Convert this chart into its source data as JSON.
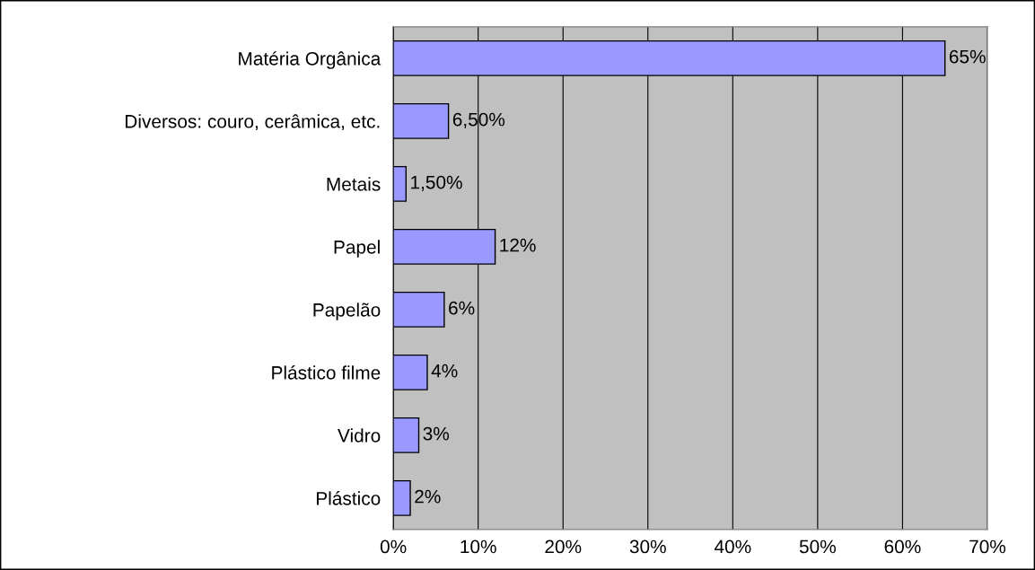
{
  "chart_data": {
    "type": "bar",
    "orientation": "horizontal",
    "categories": [
      "Matéria Orgânica",
      "Diversos: couro, cerâmica, etc.",
      "Metais",
      "Papel",
      "Papelão",
      "Plástico filme",
      "Vidro",
      "Plástico"
    ],
    "values": [
      65,
      6.5,
      1.5,
      12,
      6,
      4,
      3,
      2
    ],
    "value_labels": [
      "65%",
      "6,50%",
      "1,50%",
      "12%",
      "6%",
      "4%",
      "3%",
      "2%"
    ],
    "color": "#9999ff",
    "xlim": [
      0,
      70
    ],
    "xticks": [
      {
        "value": 0,
        "label": "0%"
      },
      {
        "value": 10,
        "label": "10%"
      },
      {
        "value": 20,
        "label": "20%"
      },
      {
        "value": 30,
        "label": "30%"
      },
      {
        "value": 40,
        "label": "40%"
      },
      {
        "value": 50,
        "label": "50%"
      },
      {
        "value": 60,
        "label": "60%"
      },
      {
        "value": 70,
        "label": "70%"
      }
    ],
    "grid": "x",
    "legend": false
  }
}
